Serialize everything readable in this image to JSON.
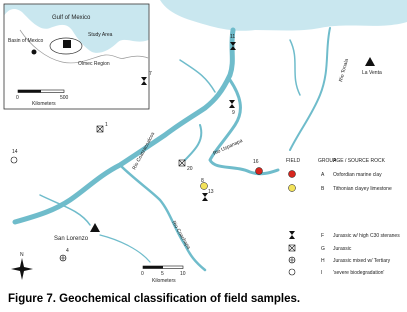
{
  "inset": {
    "labels": [
      "Gulf of Mexico",
      "Basin of Mexico",
      "Study Area",
      "Olmec Region"
    ],
    "scale": [
      "0",
      "500",
      "Kilometers"
    ]
  },
  "map": {
    "places": [
      "La Venta",
      "San Lorenzo"
    ],
    "rivers": [
      "Rio Tonala",
      "Rio Coatzacoalcos",
      "Rio Uspanapa",
      "Rio Coachapa"
    ],
    "sites": [
      "11",
      "9",
      "7",
      "1",
      "14",
      "16",
      "8",
      "20",
      "13",
      "4"
    ],
    "scale": [
      "0",
      "5",
      "10",
      "Kilometers"
    ],
    "north": "N"
  },
  "legend": {
    "headers": [
      "FIELD",
      "GROUP",
      "AGE / SOURCE ROCK"
    ],
    "rows": [
      [
        "A",
        "Oxfordian marine clay"
      ],
      [
        "B",
        "Tithonian clayey limestone"
      ],
      [
        "F",
        "Jurassic w/ high C30 steranes"
      ],
      [
        "G",
        "Jurassic"
      ],
      [
        "H",
        "Jurassic mixed w/ Tertiary"
      ],
      [
        "I",
        "'severe biodegradation'"
      ]
    ]
  },
  "caption": "Figure 7. Geochemical classification of field samples."
}
